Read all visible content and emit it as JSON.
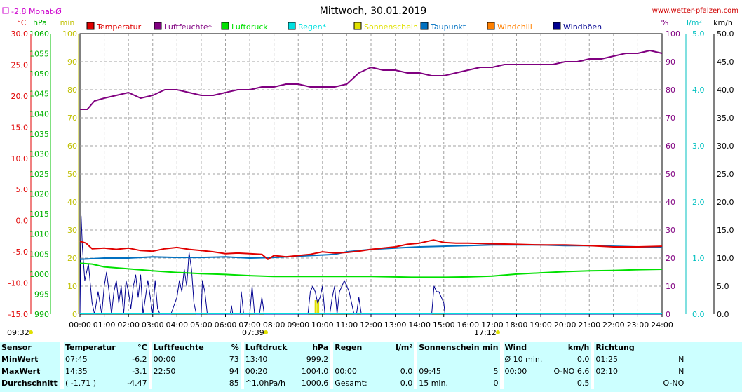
{
  "header": {
    "legend_note": "-2.8 Monat-Ø",
    "title": "Mittwoch, 30.01.2019",
    "site": "www.wetter-pfalzen.com",
    "time_left": "09:32",
    "time_mid": "07:39",
    "time_right": "17:12"
  },
  "colors": {
    "temperature": "#e00000",
    "humidity": "#800080",
    "pressure": "#00e000",
    "rain": "#00e0e0",
    "sunshine": "#e0e000",
    "dewpoint": "#0070c0",
    "windchill": "#ff8000",
    "gusts": "#000090",
    "stats_bg": "#ccffff"
  },
  "chart_data": {
    "type": "line",
    "title": "Mittwoch, 30.01.2019",
    "x_ticks": [
      "00:00",
      "01:00",
      "02:00",
      "03:00",
      "04:00",
      "05:00",
      "06:00",
      "07:00",
      "08:00",
      "09:00",
      "10:00",
      "11:00",
      "12:00",
      "13:00",
      "14:00",
      "15:00",
      "16:00",
      "17:00",
      "18:00",
      "19:00",
      "20:00",
      "21:00",
      "22:00",
      "23:00",
      "24:00"
    ],
    "axes": {
      "temperature": {
        "unit": "°C",
        "min": -15,
        "max": 30,
        "ticks": [
          "30.0",
          "25.0",
          "20.0",
          "15.0",
          "10.0",
          "5.0",
          "0.0",
          "-5.0",
          "-10.0",
          "-15.0"
        ]
      },
      "pressure": {
        "unit": "hPa",
        "min": 990,
        "max": 1060,
        "ticks": [
          "1060",
          "1055",
          "1050",
          "1045",
          "1040",
          "1035",
          "1030",
          "1025",
          "1020",
          "1015",
          "1010",
          "1005",
          "1000",
          "995",
          "990"
        ]
      },
      "minutes": {
        "unit": "min",
        "min": 0,
        "max": 100,
        "ticks": [
          "100",
          "90",
          "80",
          "70",
          "60",
          "50",
          "40",
          "30",
          "20",
          "10",
          "0"
        ]
      },
      "humidity": {
        "unit": "%",
        "min": 0,
        "max": 100,
        "ticks": [
          "100",
          "90",
          "80",
          "70",
          "60",
          "50",
          "40",
          "30",
          "20",
          "10",
          "0"
        ]
      },
      "rain": {
        "unit": "l/m²",
        "min": 0,
        "max": 5,
        "ticks": [
          "5.0",
          "4.0",
          "3.0",
          "2.0",
          "1.0",
          "0.0"
        ]
      },
      "wind": {
        "unit": "km/h",
        "min": 0,
        "max": 50,
        "ticks": [
          "50.0",
          "45.0",
          "40.0",
          "35.0",
          "30.0",
          "25.0",
          "20.0",
          "15.0",
          "10.0",
          "5.0",
          "0.0"
        ]
      }
    },
    "legend": [
      {
        "name": "Temperatur",
        "color": "#e00000"
      },
      {
        "name": "Luftfeuchte*",
        "color": "#800080"
      },
      {
        "name": "Luftdruck",
        "color": "#00e000"
      },
      {
        "name": "Regen*",
        "color": "#00e0e0"
      },
      {
        "name": "Sonnenschein",
        "color": "#e0e000"
      },
      {
        "name": "Taupunkt",
        "color": "#0070c0"
      },
      {
        "name": "Windchill",
        "color": "#ff8000"
      },
      {
        "name": "Windböen",
        "color": "#000090"
      }
    ],
    "monthly_avg_temperature": -2.8,
    "series": {
      "temperature": {
        "axis": "temperature",
        "points": [
          [
            0,
            -3.3
          ],
          [
            0.25,
            -3.6
          ],
          [
            0.5,
            -4.5
          ],
          [
            1,
            -4.4
          ],
          [
            1.5,
            -4.6
          ],
          [
            2,
            -4.4
          ],
          [
            2.5,
            -4.8
          ],
          [
            3,
            -4.9
          ],
          [
            3.5,
            -4.5
          ],
          [
            4,
            -4.3
          ],
          [
            4.5,
            -4.6
          ],
          [
            5,
            -4.8
          ],
          [
            5.5,
            -5.0
          ],
          [
            6,
            -5.3
          ],
          [
            6.5,
            -5.2
          ],
          [
            7,
            -5.3
          ],
          [
            7.5,
            -5.4
          ],
          [
            7.75,
            -6.2
          ],
          [
            8,
            -5.6
          ],
          [
            8.5,
            -5.8
          ],
          [
            9,
            -5.6
          ],
          [
            9.5,
            -5.4
          ],
          [
            10,
            -5.0
          ],
          [
            10.5,
            -5.2
          ],
          [
            11,
            -5.1
          ],
          [
            11.5,
            -4.9
          ],
          [
            12,
            -4.6
          ],
          [
            12.5,
            -4.4
          ],
          [
            13,
            -4.2
          ],
          [
            13.5,
            -3.8
          ],
          [
            14,
            -3.6
          ],
          [
            14.58,
            -3.1
          ],
          [
            15,
            -3.5
          ],
          [
            15.5,
            -3.6
          ],
          [
            16,
            -3.6
          ],
          [
            17,
            -3.7
          ],
          [
            18,
            -3.8
          ],
          [
            19,
            -3.9
          ],
          [
            20,
            -3.9
          ],
          [
            21,
            -4.0
          ],
          [
            22,
            -4.2
          ],
          [
            23,
            -4.2
          ],
          [
            24,
            -4.1
          ]
        ]
      },
      "humidity": {
        "axis": "humidity",
        "points": [
          [
            0,
            73
          ],
          [
            0.3,
            73
          ],
          [
            0.6,
            76
          ],
          [
            1,
            77
          ],
          [
            1.5,
            78
          ],
          [
            2,
            79
          ],
          [
            2.5,
            77
          ],
          [
            3,
            78
          ],
          [
            3.5,
            80
          ],
          [
            4,
            80
          ],
          [
            4.5,
            79
          ],
          [
            5,
            78
          ],
          [
            5.5,
            78
          ],
          [
            6,
            79
          ],
          [
            6.5,
            80
          ],
          [
            7,
            80
          ],
          [
            7.5,
            81
          ],
          [
            8,
            81
          ],
          [
            8.5,
            82
          ],
          [
            9,
            82
          ],
          [
            9.5,
            81
          ],
          [
            10,
            81
          ],
          [
            10.5,
            81
          ],
          [
            11,
            82
          ],
          [
            11.5,
            86
          ],
          [
            12,
            88
          ],
          [
            12.5,
            87
          ],
          [
            13,
            87
          ],
          [
            13.5,
            86
          ],
          [
            14,
            86
          ],
          [
            14.5,
            85
          ],
          [
            15,
            85
          ],
          [
            15.5,
            86
          ],
          [
            16,
            87
          ],
          [
            16.5,
            88
          ],
          [
            17,
            88
          ],
          [
            17.5,
            89
          ],
          [
            18,
            89
          ],
          [
            18.5,
            89
          ],
          [
            19,
            89
          ],
          [
            19.5,
            89
          ],
          [
            20,
            90
          ],
          [
            20.5,
            90
          ],
          [
            21,
            91
          ],
          [
            21.5,
            91
          ],
          [
            22,
            92
          ],
          [
            22.5,
            93
          ],
          [
            23,
            93
          ],
          [
            23.5,
            94
          ],
          [
            24,
            93
          ]
        ]
      },
      "pressure": {
        "axis": "pressure",
        "points": [
          [
            0,
            1002.7
          ],
          [
            0.5,
            1002.5
          ],
          [
            1,
            1001.8
          ],
          [
            2,
            1001.3
          ],
          [
            3,
            1000.8
          ],
          [
            4,
            1000.4
          ],
          [
            5,
            1000.1
          ],
          [
            6,
            999.9
          ],
          [
            7,
            999.6
          ],
          [
            8,
            999.4
          ],
          [
            9,
            999.4
          ],
          [
            10,
            999.4
          ],
          [
            11,
            999.4
          ],
          [
            12,
            999.4
          ],
          [
            13,
            999.3
          ],
          [
            13.67,
            999.2
          ],
          [
            14,
            999.2
          ],
          [
            15,
            999.2
          ],
          [
            16,
            999.3
          ],
          [
            17,
            999.5
          ],
          [
            18,
            1000.0
          ],
          [
            19,
            1000.3
          ],
          [
            20,
            1000.6
          ],
          [
            21,
            1000.8
          ],
          [
            22,
            1000.9
          ],
          [
            23,
            1001.1
          ],
          [
            24,
            1001.2
          ]
        ]
      },
      "dewpoint": {
        "axis": "temperature",
        "points": [
          [
            0,
            -6.2
          ],
          [
            1,
            -6.0
          ],
          [
            2,
            -6.0
          ],
          [
            3,
            -5.8
          ],
          [
            4,
            -5.9
          ],
          [
            5,
            -5.9
          ],
          [
            6,
            -5.8
          ],
          [
            7,
            -6.0
          ],
          [
            8,
            -5.9
          ],
          [
            9,
            -5.7
          ],
          [
            10,
            -5.5
          ],
          [
            10.5,
            -5.4
          ],
          [
            11,
            -5.0
          ],
          [
            12,
            -4.6
          ],
          [
            13,
            -4.4
          ],
          [
            14,
            -4.2
          ],
          [
            15,
            -4.1
          ],
          [
            16,
            -4.0
          ],
          [
            17,
            -3.9
          ],
          [
            18,
            -3.9
          ],
          [
            19,
            -3.9
          ],
          [
            20,
            -4.0
          ],
          [
            21,
            -4.0
          ],
          [
            22,
            -4.1
          ],
          [
            23,
            -4.2
          ],
          [
            24,
            -4.2
          ]
        ]
      },
      "gusts": {
        "axis": "wind",
        "points": [
          [
            0,
            0
          ],
          [
            0.05,
            17.5
          ],
          [
            0.1,
            12
          ],
          [
            0.2,
            6
          ],
          [
            0.35,
            9
          ],
          [
            0.5,
            2
          ],
          [
            0.6,
            0
          ],
          [
            0.75,
            4
          ],
          [
            0.9,
            0
          ],
          [
            1,
            5
          ],
          [
            1.1,
            7.5
          ],
          [
            1.2,
            4
          ],
          [
            1.3,
            0
          ],
          [
            1.4,
            4
          ],
          [
            1.5,
            6
          ],
          [
            1.6,
            2
          ],
          [
            1.7,
            5
          ],
          [
            1.8,
            0
          ],
          [
            1.9,
            6
          ],
          [
            2,
            4
          ],
          [
            2.1,
            1
          ],
          [
            2.2,
            5
          ],
          [
            2.3,
            7
          ],
          [
            2.4,
            3
          ],
          [
            2.5,
            7
          ],
          [
            2.6,
            0
          ],
          [
            2.7,
            3
          ],
          [
            2.8,
            6
          ],
          [
            2.9,
            3
          ],
          [
            3,
            0
          ],
          [
            3.1,
            6
          ],
          [
            3.2,
            1
          ],
          [
            3.3,
            0
          ],
          [
            3.5,
            0
          ],
          [
            3.6,
            0
          ],
          [
            3.75,
            0
          ],
          [
            4,
            3
          ],
          [
            4.1,
            6
          ],
          [
            4.2,
            4
          ],
          [
            4.3,
            8
          ],
          [
            4.4,
            5
          ],
          [
            4.5,
            11
          ],
          [
            4.6,
            8
          ],
          [
            4.7,
            2
          ],
          [
            4.8,
            0
          ],
          [
            4.9,
            0
          ],
          [
            5,
            0
          ],
          [
            5.05,
            6
          ],
          [
            5.15,
            4
          ],
          [
            5.25,
            0
          ],
          [
            5.5,
            0
          ],
          [
            6,
            0
          ],
          [
            6.2,
            0
          ],
          [
            6.25,
            1.5
          ],
          [
            6.3,
            0
          ],
          [
            6.6,
            0
          ],
          [
            6.65,
            4
          ],
          [
            6.75,
            0
          ],
          [
            7,
            0
          ],
          [
            7.1,
            5
          ],
          [
            7.2,
            0
          ],
          [
            7.4,
            0
          ],
          [
            7.5,
            3
          ],
          [
            7.6,
            0
          ],
          [
            8,
            0
          ],
          [
            9,
            0
          ],
          [
            9.4,
            0
          ],
          [
            9.5,
            4
          ],
          [
            9.6,
            5
          ],
          [
            9.7,
            4
          ],
          [
            9.8,
            2
          ],
          [
            9.9,
            3
          ],
          [
            10,
            5
          ],
          [
            10.1,
            0
          ],
          [
            10.2,
            0
          ],
          [
            10.3,
            0
          ],
          [
            10.4,
            3
          ],
          [
            10.5,
            5
          ],
          [
            10.6,
            0
          ],
          [
            10.7,
            4
          ],
          [
            10.8,
            5
          ],
          [
            10.9,
            6
          ],
          [
            11,
            5
          ],
          [
            11.1,
            4
          ],
          [
            11.2,
            2
          ],
          [
            11.3,
            0
          ],
          [
            11.4,
            0
          ],
          [
            11.5,
            3
          ],
          [
            11.6,
            0
          ],
          [
            12,
            0
          ],
          [
            13,
            0
          ],
          [
            14,
            0
          ],
          [
            14.5,
            0
          ],
          [
            14.6,
            5
          ],
          [
            14.7,
            4
          ],
          [
            14.8,
            4
          ],
          [
            14.9,
            3
          ],
          [
            15,
            2
          ],
          [
            15.05,
            0
          ],
          [
            16,
            0
          ],
          [
            17,
            0
          ],
          [
            20,
            0
          ],
          [
            24,
            0
          ]
        ]
      },
      "sunshine_bars": [
        [
          9.72,
          5
        ],
        [
          9.82,
          5
        ]
      ]
    }
  },
  "stats": {
    "headers": {
      "sensor": "Sensor",
      "temperature": "Temperatur",
      "temperature_unit": "°C",
      "humidity": "Luftfeuchte",
      "humidity_unit": "%",
      "pressure": "Luftdruck",
      "pressure_unit": "hPa",
      "rain": "Regen",
      "rain_unit": "l/m²",
      "sunshine": "Sonnenschein min",
      "wind": "Wind",
      "wind_unit": "km/h",
      "direction": "Richtung"
    },
    "rows": [
      {
        "label": "MinWert",
        "temp_time": "07:45",
        "temp_val": "-6.2",
        "hum_time": "00:00",
        "hum_val": "73",
        "pres_time": "13:40",
        "pres_val": "999.2",
        "rain_time": "",
        "rain_val": "",
        "sun_time": "",
        "sun_val": "",
        "wind_a": "Ø 10 min.",
        "wind_b": "0.0",
        "dir_time": "01:25",
        "dir_val": "N"
      },
      {
        "label": "MaxWert",
        "temp_time": "14:35",
        "temp_val": "-3.1",
        "hum_time": "22:50",
        "hum_val": "94",
        "pres_time": "00:20",
        "pres_val": "1004.0",
        "rain_time": "00:00",
        "rain_val": "0.0",
        "sun_time": "09:45",
        "sun_val": "5",
        "wind_a": "00:00",
        "wind_b": "O-NO 6.6",
        "dir_time": "02:10",
        "dir_val": "N"
      },
      {
        "label": "Durchschnitt",
        "temp_time": "( -1.71 )",
        "temp_val": "-4.47",
        "hum_time": "",
        "hum_val": "85",
        "pres_time": "^1.0hPa/h",
        "pres_val": "1000.6",
        "rain_time": "Gesamt:",
        "rain_val": "0.0",
        "sun_time": "15 min.",
        "sun_val": "0",
        "wind_a": "",
        "wind_b": "0.5",
        "dir_time": "",
        "dir_val": "O-NO"
      }
    ]
  }
}
